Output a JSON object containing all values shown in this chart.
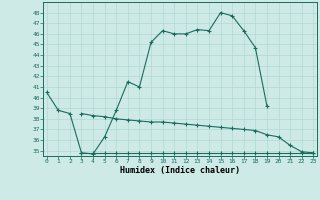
{
  "xlabel": "Humidex (Indice chaleur)",
  "x": [
    0,
    1,
    2,
    3,
    4,
    5,
    6,
    7,
    8,
    9,
    10,
    11,
    12,
    13,
    14,
    15,
    16,
    17,
    18,
    19,
    20,
    21,
    22,
    23
  ],
  "line1": [
    40.5,
    38.8,
    38.5,
    34.8,
    34.7,
    36.3,
    38.8,
    41.5,
    41.0,
    45.2,
    46.3,
    46.0,
    46.0,
    46.4,
    46.3,
    48.0,
    47.7,
    46.3,
    44.7,
    39.2,
    null,
    null,
    null,
    null
  ],
  "line2": [
    null,
    null,
    null,
    38.5,
    38.3,
    38.2,
    38.0,
    37.9,
    37.8,
    37.7,
    37.7,
    37.6,
    37.5,
    37.4,
    37.3,
    37.2,
    37.1,
    37.0,
    36.9,
    36.5,
    36.3,
    35.5,
    34.9,
    34.8
  ],
  "line3": [
    null,
    null,
    null,
    34.8,
    34.8,
    34.8,
    34.8,
    34.8,
    34.8,
    34.8,
    34.8,
    34.8,
    34.8,
    34.8,
    34.8,
    34.8,
    34.8,
    34.8,
    34.8,
    34.8,
    34.8,
    34.8,
    34.8,
    34.8
  ],
  "ylim": [
    34.5,
    49.0
  ],
  "xlim": [
    -0.3,
    23.3
  ],
  "yticks": [
    35,
    36,
    37,
    38,
    39,
    40,
    41,
    42,
    43,
    44,
    45,
    46,
    47,
    48
  ],
  "xticks": [
    0,
    1,
    2,
    3,
    4,
    5,
    6,
    7,
    8,
    9,
    10,
    11,
    12,
    13,
    14,
    15,
    16,
    17,
    18,
    19,
    20,
    21,
    22,
    23
  ],
  "line_color": "#1a6b5e",
  "bg_color": "#ceeae6",
  "grid_color": "#b0d8d2",
  "spine_color": "#1a6b5e"
}
